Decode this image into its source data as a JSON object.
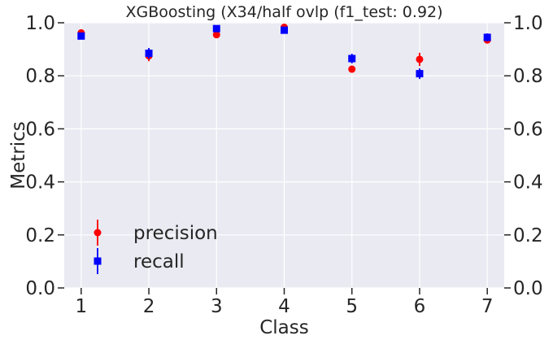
{
  "chart_data": {
    "type": "scatter",
    "title": "XGBoosting (X34/half ovlp (f1_test: 0.92)",
    "xlabel": "Class",
    "ylabel": "Metrics",
    "x": [
      1,
      2,
      3,
      4,
      5,
      6,
      7
    ],
    "xlim": [
      0.75,
      7.25
    ],
    "ylim": [
      0.0,
      1.0
    ],
    "yticks": [
      "0.0",
      "0.2",
      "0.4",
      "0.6",
      "0.8",
      "1.0"
    ],
    "xticks": [
      "1",
      "2",
      "3",
      "4",
      "5",
      "6",
      "7"
    ],
    "secondary_y_axis": true,
    "grid": true,
    "legend_position": "lower-left",
    "series": [
      {
        "name": "precision",
        "marker": "circle",
        "color": "#ff0000",
        "values": [
          0.962,
          0.875,
          0.955,
          0.983,
          0.825,
          0.862,
          0.935
        ],
        "errors": [
          0.008,
          0.02,
          0.01,
          0.005,
          0.012,
          0.025,
          0.012
        ]
      },
      {
        "name": "recall",
        "marker": "square",
        "color": "#0000ff",
        "values": [
          0.95,
          0.885,
          0.978,
          0.972,
          0.865,
          0.808,
          0.945
        ],
        "errors": [
          0.01,
          0.02,
          0.006,
          0.006,
          0.018,
          0.02,
          0.015
        ]
      }
    ]
  }
}
